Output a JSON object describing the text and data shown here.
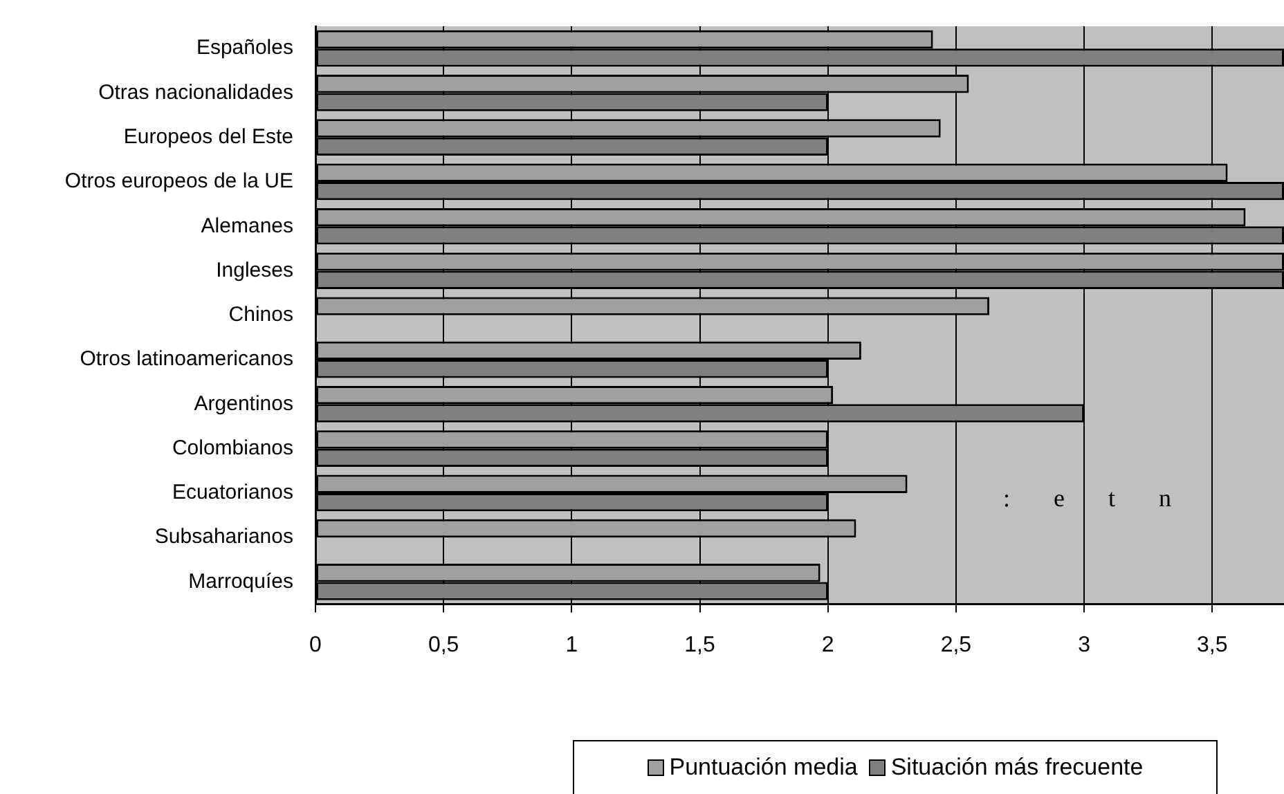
{
  "chart_data": {
    "type": "bar",
    "orientation": "horizontal",
    "categories": [
      "Españoles",
      "Otras nacionalidades",
      "Europeos del Este",
      "Otros europeos de la UE",
      "Alemanes",
      "Ingleses",
      "Chinos",
      "Otros latinoamericanos",
      "Argentinos",
      "Colombianos",
      "Ecuatorianos",
      "Subsaharianos",
      "Marroquíes"
    ],
    "series": [
      {
        "name": "Puntuación media",
        "color": "#a0a0a0",
        "values": [
          2.41,
          2.55,
          2.44,
          3.56,
          3.63,
          3.78,
          2.63,
          2.13,
          2.02,
          2.0,
          2.31,
          2.11,
          1.97
        ]
      },
      {
        "name": "Situación más frecuente",
        "color": "#808080",
        "values": [
          3.78,
          2,
          2,
          3.78,
          3.78,
          3.78,
          null,
          2,
          3,
          2,
          2,
          null,
          2
        ]
      }
    ],
    "xlim": [
      0,
      3.78
    ],
    "xticks": [
      0,
      {
        "value": 0.5,
        "label": "0,5"
      },
      1,
      {
        "value": 1.5,
        "label": "1,5"
      },
      2,
      {
        "value": 2.5,
        "label": "2,5"
      },
      3,
      {
        "value": 3.5,
        "label": "3,5"
      }
    ],
    "grid": "x",
    "legend": "bottom",
    "annotations": [
      ": e t n"
    ]
  }
}
